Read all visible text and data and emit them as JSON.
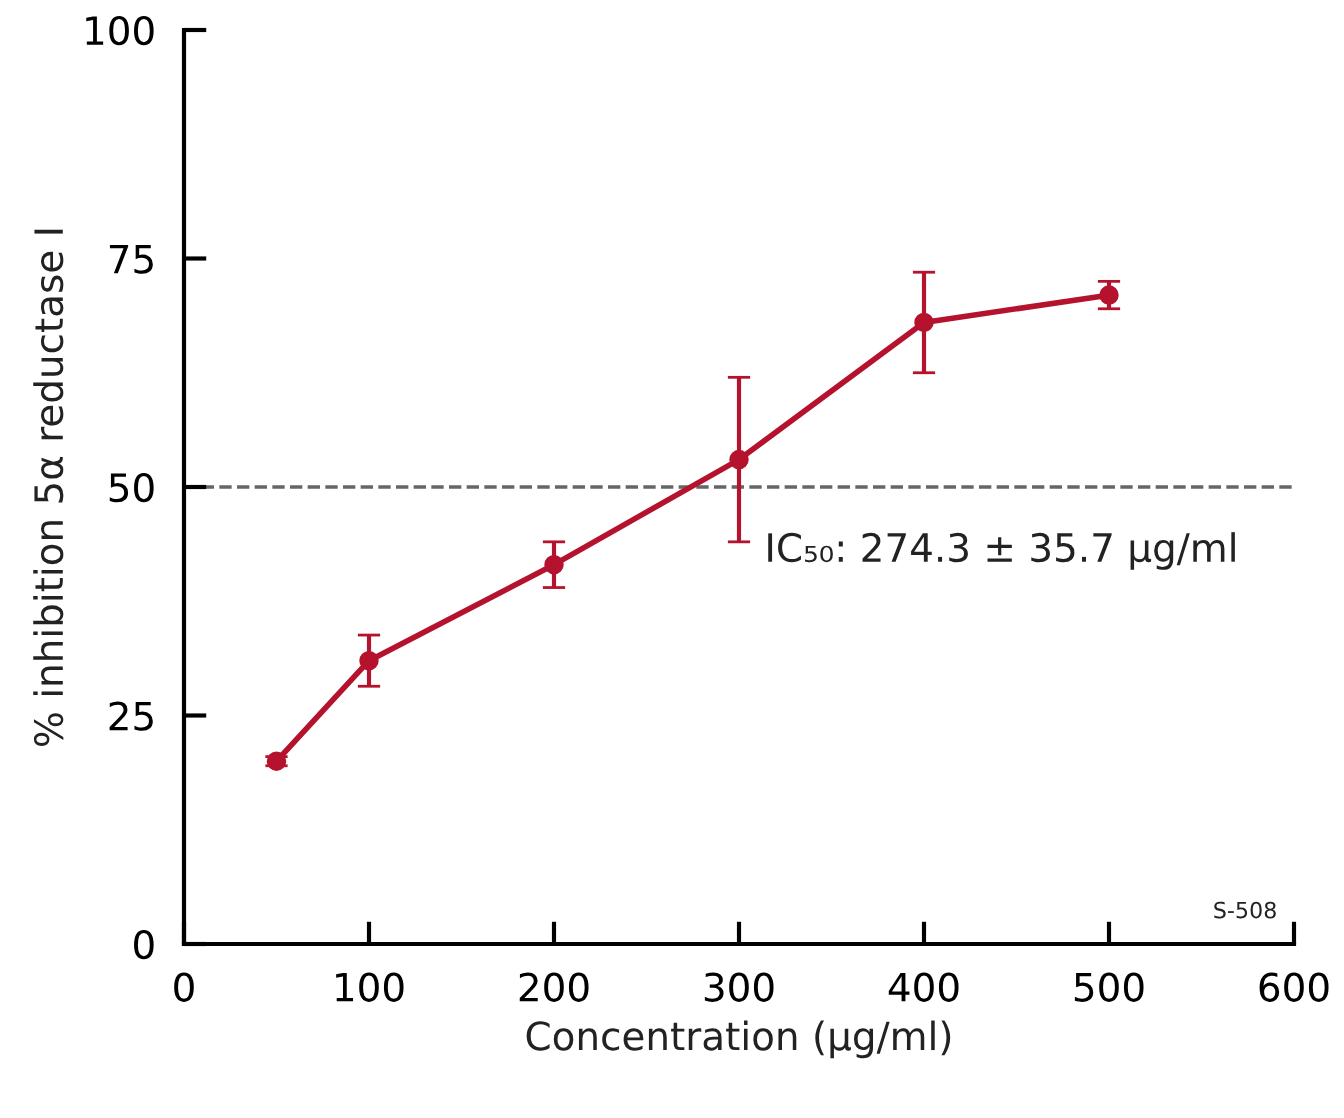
{
  "chart_data": {
    "type": "line",
    "xlabel": "Concentration (µg/ml)",
    "ylabel": "% inhibition 5α reductase I",
    "x": [
      50,
      100,
      200,
      300,
      400,
      500
    ],
    "series": [
      {
        "color": "#b5122e",
        "values": [
          20,
          31,
          41.5,
          53,
          68,
          71
        ],
        "errors": [
          0.5,
          2.8,
          2.5,
          9,
          5.5,
          1.5
        ]
      }
    ],
    "xlim": [
      0,
      600
    ],
    "xticks": [
      0,
      100,
      200,
      300,
      400,
      500,
      600
    ],
    "ylim": [
      0,
      100
    ],
    "yticks": [
      0,
      25,
      50,
      75,
      100
    ],
    "ref_lines": [
      {
        "axis": "y",
        "value": 50,
        "color": "#666666",
        "line_style": "dashed"
      }
    ],
    "annotations": [
      "IC₅₀: 274.3 ± 35.7 µg/ml",
      "S-508"
    ],
    "marker": "circle",
    "line_style": "solid",
    "grid": false,
    "legend": false
  }
}
